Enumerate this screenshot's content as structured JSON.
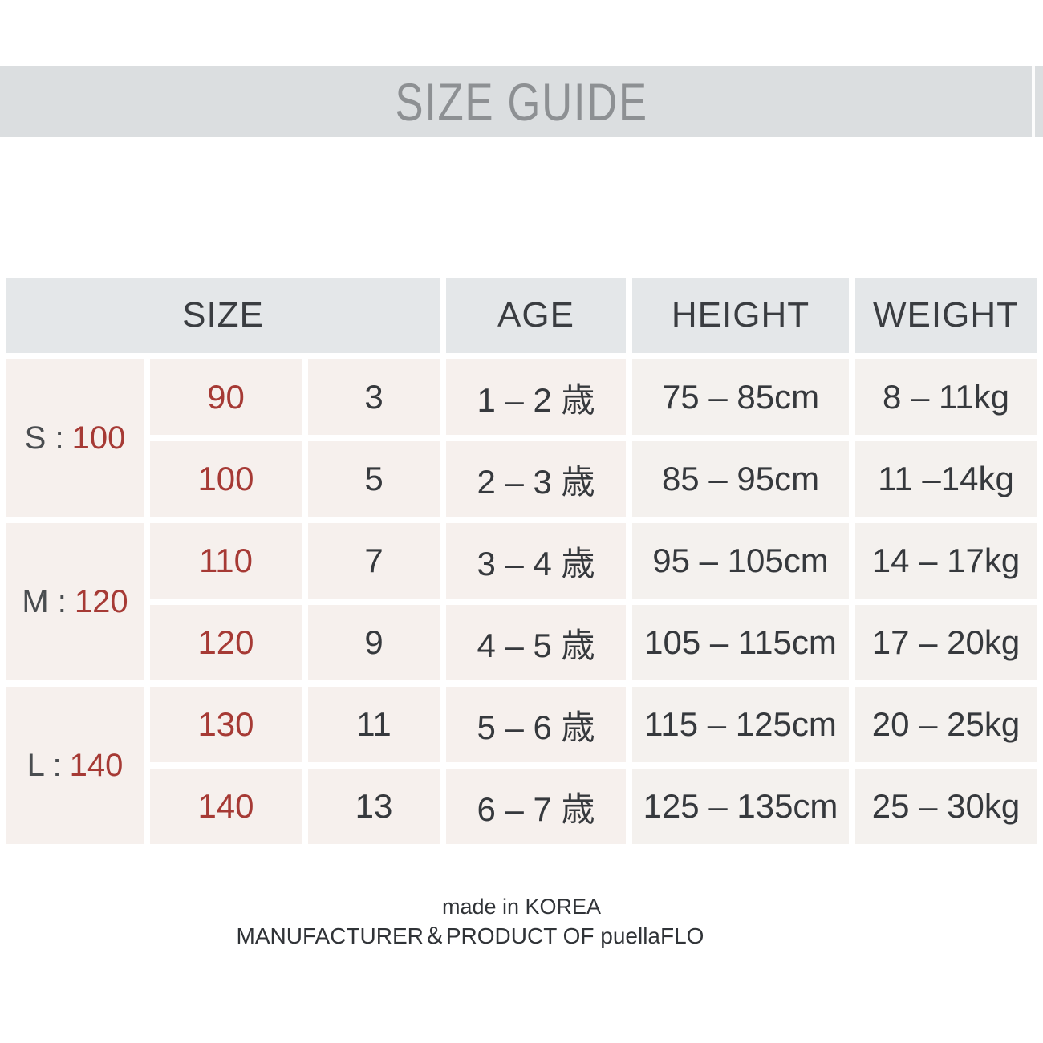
{
  "title": "SIZE GUIDE",
  "colors": {
    "band_bg": "#dbdee0",
    "header_cell_bg": "#e4e7e9",
    "cell_pink_bg": "#f6f0ed",
    "cell_light_bg": "#f4f1ee",
    "accent_red": "#a63a35",
    "text_dark": "#36393d",
    "title_gray": "#8d9093"
  },
  "table": {
    "headers": {
      "size": "SIZE",
      "age": "AGE",
      "height": "HEIGHT",
      "weight": "WEIGHT"
    },
    "groups": [
      {
        "prefix": "S :",
        "value": "100"
      },
      {
        "prefix": "M :",
        "value": "120"
      },
      {
        "prefix": "L :",
        "value": "140"
      }
    ],
    "rows": [
      {
        "size": "90",
        "num": "3",
        "age": "1 – 2 歳",
        "height": "75 – 85cm",
        "weight": "8 – 11kg"
      },
      {
        "size": "100",
        "num": "5",
        "age": "2 – 3 歳",
        "height": "85 – 95cm",
        "weight": "11 –14kg"
      },
      {
        "size": "110",
        "num": "7",
        "age": "3 – 4 歳",
        "height": "95 – 105cm",
        "weight": "14 – 17kg"
      },
      {
        "size": "120",
        "num": "9",
        "age": "4 – 5 歳",
        "height": "105 – 115cm",
        "weight": "17 – 20kg"
      },
      {
        "size": "130",
        "num": "11",
        "age": "5 – 6 歳",
        "height": "115 – 125cm",
        "weight": "20 – 25kg"
      },
      {
        "size": "140",
        "num": "13",
        "age": "6 – 7 歳",
        "height": "125 – 135cm",
        "weight": "25 – 30kg"
      }
    ]
  },
  "footer": {
    "line1": "made in KOREA",
    "line2": "MANUFACTURER＆PRODUCT OF puellaFLO"
  }
}
